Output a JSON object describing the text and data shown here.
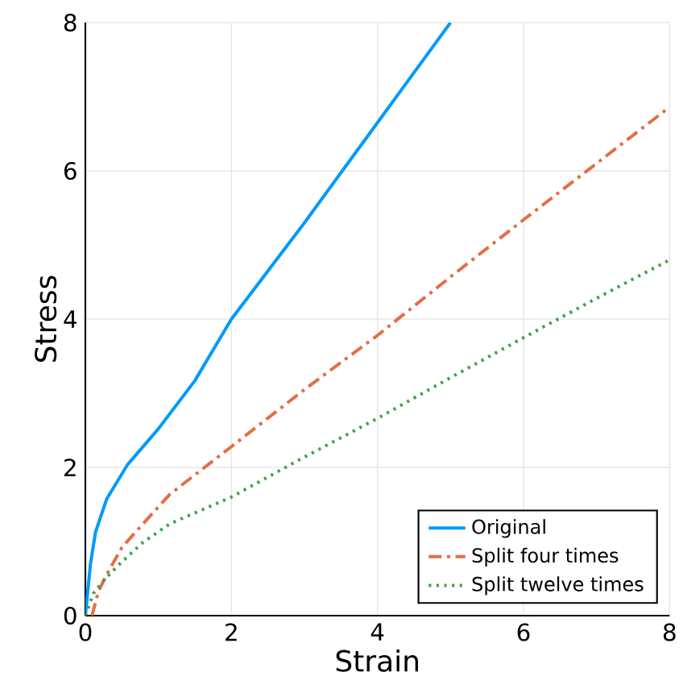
{
  "chart_data": {
    "type": "line",
    "xlabel": "Strain",
    "ylabel": "Stress",
    "xlim": [
      0,
      8
    ],
    "ylim": [
      0,
      8
    ],
    "xticks": [
      0,
      2,
      4,
      6,
      8
    ],
    "yticks": [
      0,
      2,
      4,
      6,
      8
    ],
    "grid": true,
    "legend": "bottom right",
    "series": [
      {
        "name": "Original",
        "color": "#009af9",
        "line_style": "solid",
        "x": [
          0,
          0.07,
          0.14,
          0.29,
          0.58,
          1,
          1.5,
          2,
          3,
          4,
          5
        ],
        "values": [
          0,
          0.7,
          1.13,
          1.57,
          2.04,
          2.52,
          3.17,
          4.0,
          5.3,
          6.65,
          8
        ]
      },
      {
        "name": "Split four times",
        "color": "#e26f46",
        "line_style": "dashdot",
        "x": [
          0.09,
          0.18,
          0.29,
          0.5,
          0.79,
          1.16,
          2,
          3,
          4,
          5,
          6,
          7,
          8
        ],
        "values": [
          0,
          0.33,
          0.55,
          0.92,
          1.24,
          1.64,
          2.28,
          3.05,
          3.78,
          4.57,
          5.34,
          6.1,
          6.86
        ]
      },
      {
        "name": "Split twelve times",
        "color": "#3da44d",
        "line_style": "dotted",
        "x": [
          0,
          0.11,
          0.22,
          0.43,
          0.79,
          1.16,
          2,
          3,
          4,
          5,
          6,
          7,
          8
        ],
        "values": [
          0,
          0.3,
          0.44,
          0.66,
          0.99,
          1.24,
          1.6,
          2.14,
          2.66,
          3.21,
          3.75,
          4.28,
          4.8
        ]
      }
    ]
  }
}
